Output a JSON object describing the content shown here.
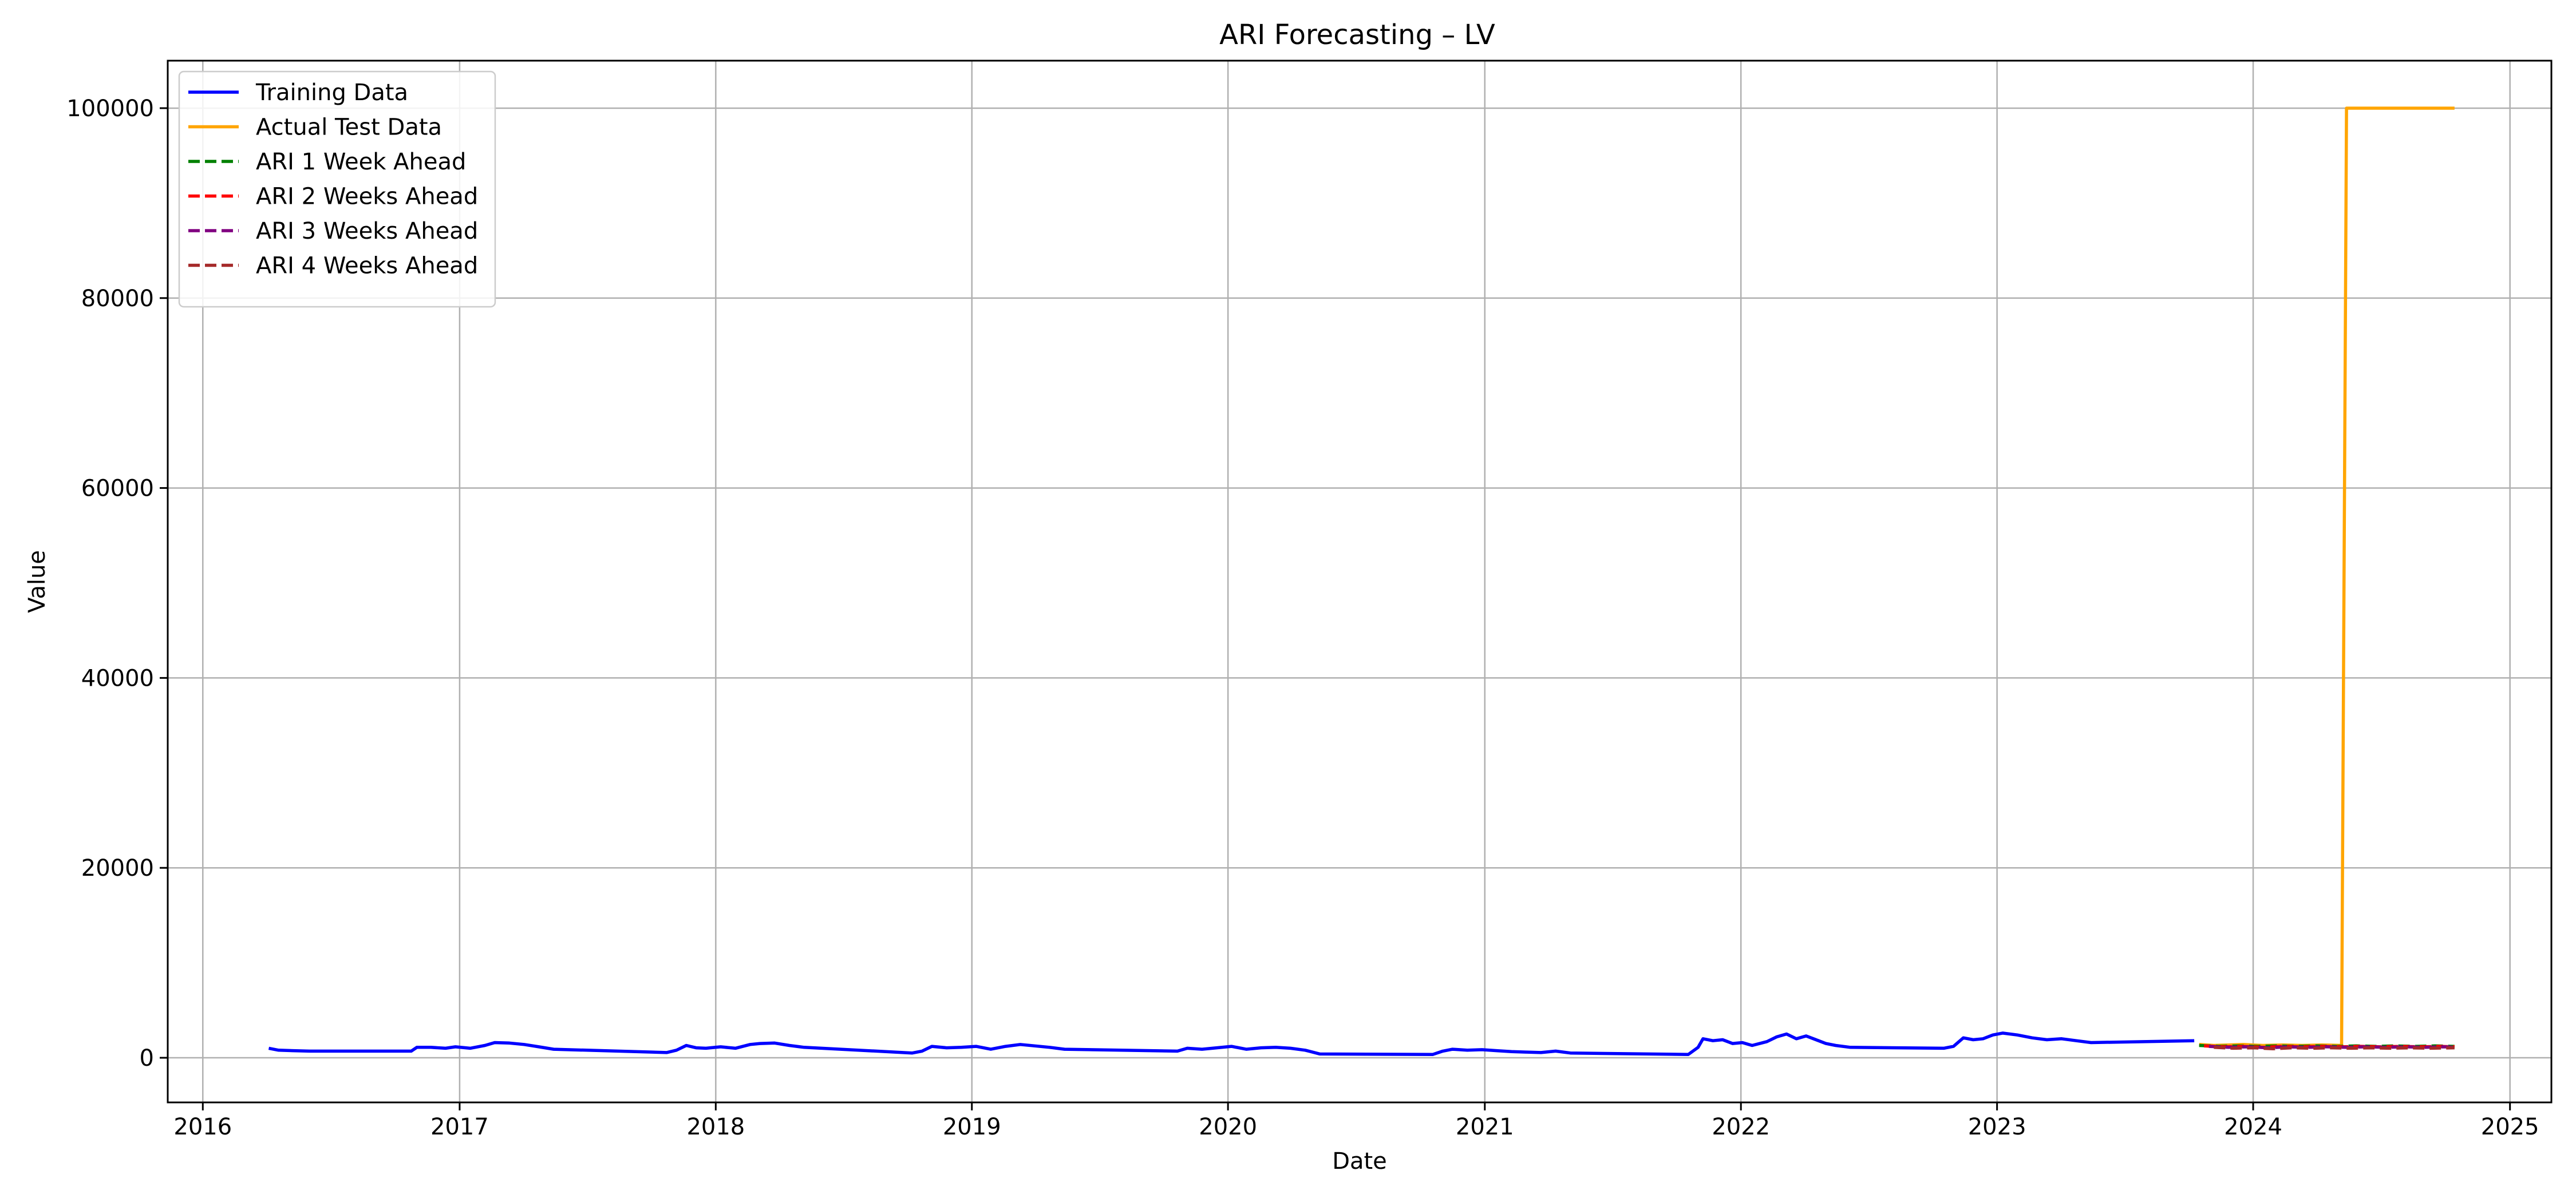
{
  "chart_data": {
    "type": "line",
    "title": "ARI Forecasting – LV",
    "xlabel": "Date",
    "ylabel": "Value",
    "grid": true,
    "legend_position": "top-left",
    "xlim": [
      "2015-11-12",
      "2025-03-01"
    ],
    "ylim": [
      -4700,
      105000
    ],
    "x_ticks": [
      "2016-01-01",
      "2017-01-01",
      "2018-01-01",
      "2019-01-01",
      "2020-01-01",
      "2021-01-01",
      "2022-01-01",
      "2023-01-01",
      "2024-01-01",
      "2025-01-01"
    ],
    "x_tick_labels": [
      "2016",
      "2017",
      "2018",
      "2019",
      "2020",
      "2021",
      "2022",
      "2023",
      "2024",
      "2025"
    ],
    "y_ticks": [
      0,
      20000,
      40000,
      60000,
      80000,
      100000
    ],
    "y_tick_labels": [
      "0",
      "20000",
      "40000",
      "60000",
      "80000",
      "100000"
    ],
    "series": [
      {
        "name": "Training Data",
        "color": "#0000ff",
        "dash": "solid",
        "points": [
          [
            "2016-04-04",
            1000
          ],
          [
            "2016-04-18",
            800
          ],
          [
            "2016-05-09",
            750
          ],
          [
            "2016-06-01",
            700
          ],
          [
            "2016-10-24",
            700
          ],
          [
            "2016-11-01",
            1100
          ],
          [
            "2016-11-21",
            1100
          ],
          [
            "2016-12-12",
            1000
          ],
          [
            "2016-12-26",
            1150
          ],
          [
            "2017-01-16",
            1000
          ],
          [
            "2017-02-06",
            1300
          ],
          [
            "2017-02-20",
            1600
          ],
          [
            "2017-03-13",
            1550
          ],
          [
            "2017-04-03",
            1400
          ],
          [
            "2017-04-24",
            1150
          ],
          [
            "2017-05-15",
            900
          ],
          [
            "2017-10-23",
            550
          ],
          [
            "2017-11-06",
            800
          ],
          [
            "2017-11-20",
            1300
          ],
          [
            "2017-12-04",
            1050
          ],
          [
            "2017-12-18",
            1000
          ],
          [
            "2018-01-08",
            1150
          ],
          [
            "2018-01-29",
            1000
          ],
          [
            "2018-02-19",
            1400
          ],
          [
            "2018-03-05",
            1500
          ],
          [
            "2018-03-26",
            1550
          ],
          [
            "2018-04-16",
            1300
          ],
          [
            "2018-05-07",
            1100
          ],
          [
            "2018-10-08",
            500
          ],
          [
            "2018-10-22",
            700
          ],
          [
            "2018-11-05",
            1200
          ],
          [
            "2018-11-26",
            1050
          ],
          [
            "2018-12-17",
            1100
          ],
          [
            "2019-01-07",
            1200
          ],
          [
            "2019-01-28",
            900
          ],
          [
            "2019-02-18",
            1200
          ],
          [
            "2019-03-11",
            1400
          ],
          [
            "2019-04-01",
            1250
          ],
          [
            "2019-04-22",
            1100
          ],
          [
            "2019-05-13",
            900
          ],
          [
            "2019-10-21",
            700
          ],
          [
            "2019-11-04",
            1000
          ],
          [
            "2019-11-25",
            900
          ],
          [
            "2019-12-16",
            1050
          ],
          [
            "2020-01-06",
            1200
          ],
          [
            "2020-01-27",
            900
          ],
          [
            "2020-02-17",
            1050
          ],
          [
            "2020-03-09",
            1100
          ],
          [
            "2020-03-30",
            1000
          ],
          [
            "2020-04-20",
            800
          ],
          [
            "2020-05-11",
            400
          ],
          [
            "2020-10-19",
            350
          ],
          [
            "2020-11-02",
            700
          ],
          [
            "2020-11-16",
            900
          ],
          [
            "2020-12-07",
            800
          ],
          [
            "2020-12-28",
            850
          ],
          [
            "2021-01-18",
            750
          ],
          [
            "2021-02-08",
            650
          ],
          [
            "2021-03-01",
            600
          ],
          [
            "2021-03-22",
            550
          ],
          [
            "2021-04-12",
            700
          ],
          [
            "2021-05-03",
            500
          ],
          [
            "2021-10-18",
            350
          ],
          [
            "2021-11-01",
            1100
          ],
          [
            "2021-11-08",
            2000
          ],
          [
            "2021-11-22",
            1800
          ],
          [
            "2021-12-06",
            1900
          ],
          [
            "2021-12-20",
            1500
          ],
          [
            "2022-01-03",
            1600
          ],
          [
            "2022-01-17",
            1300
          ],
          [
            "2022-02-07",
            1700
          ],
          [
            "2022-02-21",
            2200
          ],
          [
            "2022-03-07",
            2500
          ],
          [
            "2022-03-21",
            2000
          ],
          [
            "2022-04-04",
            2300
          ],
          [
            "2022-04-18",
            1900
          ],
          [
            "2022-05-02",
            1500
          ],
          [
            "2022-05-16",
            1300
          ],
          [
            "2022-06-06",
            1100
          ],
          [
            "2022-10-17",
            1000
          ],
          [
            "2022-10-31",
            1200
          ],
          [
            "2022-11-14",
            2100
          ],
          [
            "2022-11-28",
            1900
          ],
          [
            "2022-12-12",
            2000
          ],
          [
            "2022-12-26",
            2400
          ],
          [
            "2023-01-09",
            2600
          ],
          [
            "2023-01-30",
            2400
          ],
          [
            "2023-02-20",
            2100
          ],
          [
            "2023-03-13",
            1900
          ],
          [
            "2023-04-03",
            2000
          ],
          [
            "2023-04-24",
            1800
          ],
          [
            "2023-05-15",
            1600
          ],
          [
            "2023-10-09",
            1800
          ]
        ]
      },
      {
        "name": "Actual Test Data",
        "color": "#ffa500",
        "dash": "solid",
        "points": [
          [
            "2023-10-16",
            1400
          ],
          [
            "2023-11-06",
            1300
          ],
          [
            "2023-11-27",
            1350
          ],
          [
            "2023-12-18",
            1400
          ],
          [
            "2024-01-15",
            1300
          ],
          [
            "2024-02-12",
            1350
          ],
          [
            "2024-03-11",
            1300
          ],
          [
            "2024-04-08",
            1350
          ],
          [
            "2024-05-06",
            1300
          ],
          [
            "2024-05-13",
            100000
          ],
          [
            "2024-10-14",
            100000
          ]
        ]
      },
      {
        "name": "ARI 1 Week Ahead",
        "color": "#008000",
        "dash": "dashed",
        "points": [
          [
            "2023-10-16",
            1300
          ],
          [
            "2023-11-13",
            1200
          ],
          [
            "2023-12-11",
            1250
          ],
          [
            "2024-01-08",
            1200
          ],
          [
            "2024-02-05",
            1250
          ],
          [
            "2024-03-04",
            1200
          ],
          [
            "2024-04-01",
            1250
          ],
          [
            "2024-04-29",
            1200
          ],
          [
            "2024-05-27",
            1250
          ],
          [
            "2024-06-24",
            1200
          ],
          [
            "2024-07-22",
            1250
          ],
          [
            "2024-08-19",
            1200
          ],
          [
            "2024-09-16",
            1250
          ],
          [
            "2024-10-14",
            1200
          ]
        ]
      },
      {
        "name": "ARI 2 Weeks Ahead",
        "color": "#ff0000",
        "dash": "dashed",
        "points": [
          [
            "2023-10-23",
            1250
          ],
          [
            "2023-11-20",
            1150
          ],
          [
            "2023-12-18",
            1200
          ],
          [
            "2024-01-15",
            1100
          ],
          [
            "2024-02-12",
            1200
          ],
          [
            "2024-03-11",
            1150
          ],
          [
            "2024-04-08",
            1200
          ],
          [
            "2024-05-06",
            1150
          ],
          [
            "2024-06-03",
            1200
          ],
          [
            "2024-07-01",
            1150
          ],
          [
            "2024-07-29",
            1200
          ],
          [
            "2024-08-26",
            1150
          ],
          [
            "2024-09-23",
            1200
          ],
          [
            "2024-10-14",
            1150
          ]
        ]
      },
      {
        "name": "ARI 3 Weeks Ahead",
        "color": "#800080",
        "dash": "dashed",
        "points": [
          [
            "2023-10-30",
            1200
          ],
          [
            "2023-11-27",
            1100
          ],
          [
            "2023-12-25",
            1150
          ],
          [
            "2024-01-22",
            1050
          ],
          [
            "2024-02-19",
            1150
          ],
          [
            "2024-03-18",
            1100
          ],
          [
            "2024-04-15",
            1150
          ],
          [
            "2024-05-13",
            1100
          ],
          [
            "2024-06-10",
            1150
          ],
          [
            "2024-07-08",
            1100
          ],
          [
            "2024-08-05",
            1150
          ],
          [
            "2024-09-02",
            1100
          ],
          [
            "2024-09-30",
            1150
          ],
          [
            "2024-10-14",
            1100
          ]
        ]
      },
      {
        "name": "ARI 4 Weeks Ahead",
        "color": "#a52a2a",
        "dash": "dashed",
        "points": [
          [
            "2023-11-06",
            1100
          ],
          [
            "2023-12-04",
            1000
          ],
          [
            "2024-01-01",
            1050
          ],
          [
            "2024-01-29",
            950
          ],
          [
            "2024-02-26",
            1050
          ],
          [
            "2024-03-25",
            1000
          ],
          [
            "2024-04-22",
            1050
          ],
          [
            "2024-05-20",
            1000
          ],
          [
            "2024-06-17",
            1050
          ],
          [
            "2024-07-15",
            1000
          ],
          [
            "2024-08-12",
            1050
          ],
          [
            "2024-09-09",
            1000
          ],
          [
            "2024-10-14",
            1050
          ]
        ]
      }
    ]
  }
}
